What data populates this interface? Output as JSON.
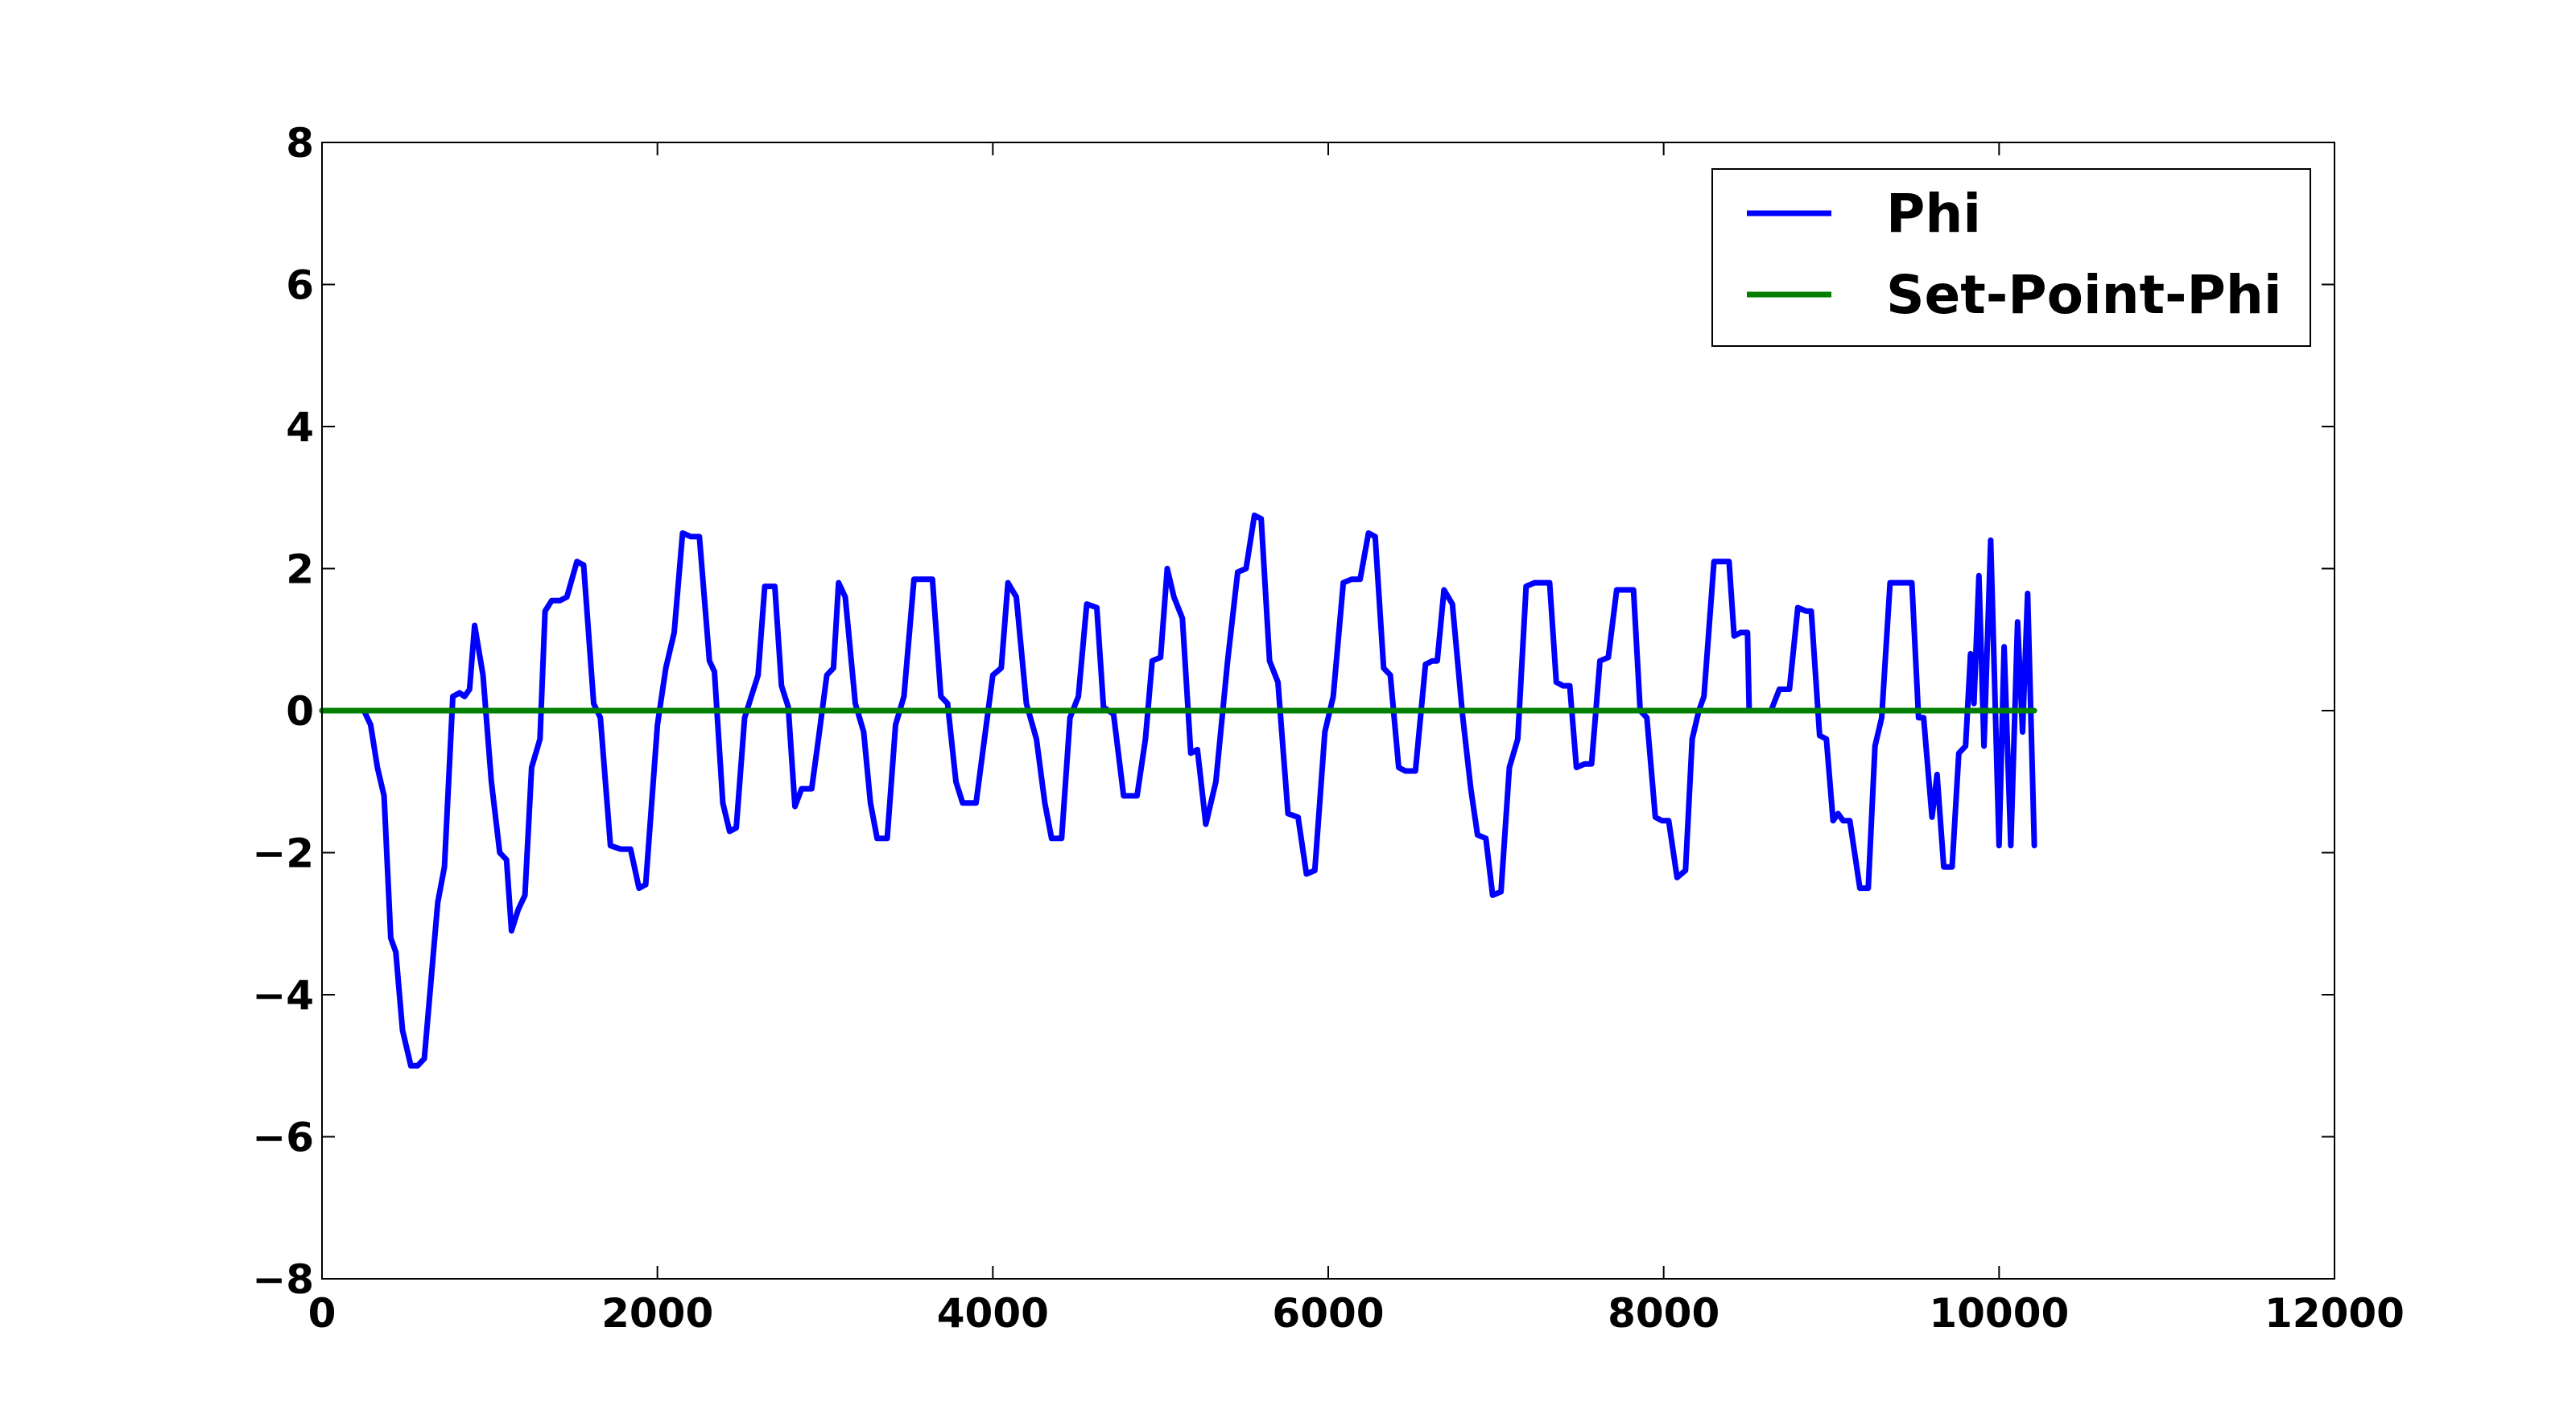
{
  "chart_data": {
    "type": "line",
    "title": "",
    "xlabel": "",
    "ylabel": "",
    "xlim": [
      0,
      12000
    ],
    "ylim": [
      -8,
      8
    ],
    "xticks": [
      0,
      2000,
      4000,
      6000,
      8000,
      10000,
      12000
    ],
    "yticks": [
      -8,
      -6,
      -4,
      -2,
      0,
      2,
      4,
      6,
      8
    ],
    "xtick_labels": [
      "0",
      "2000",
      "4000",
      "6000",
      "8000",
      "10000",
      "12000"
    ],
    "ytick_labels": [
      "−8",
      "−6",
      "−4",
      "−2",
      "0",
      "2",
      "4",
      "6",
      "8"
    ],
    "grid": false,
    "legend_position": "top-right",
    "series": [
      {
        "name": "Phi",
        "color": "#0000ff",
        "points": [
          [
            0,
            0
          ],
          [
            250,
            0
          ],
          [
            290,
            -0.2
          ],
          [
            330,
            -0.8
          ],
          [
            370,
            -1.2
          ],
          [
            410,
            -3.2
          ],
          [
            440,
            -3.4
          ],
          [
            480,
            -4.5
          ],
          [
            530,
            -5.0
          ],
          [
            570,
            -5.0
          ],
          [
            610,
            -4.9
          ],
          [
            690,
            -2.7
          ],
          [
            730,
            -2.2
          ],
          [
            780,
            0.2
          ],
          [
            820,
            0.25
          ],
          [
            850,
            0.2
          ],
          [
            880,
            0.3
          ],
          [
            910,
            1.2
          ],
          [
            960,
            0.5
          ],
          [
            1010,
            -1.0
          ],
          [
            1060,
            -2.0
          ],
          [
            1100,
            -2.1
          ],
          [
            1130,
            -3.1
          ],
          [
            1170,
            -2.8
          ],
          [
            1210,
            -2.6
          ],
          [
            1250,
            -0.8
          ],
          [
            1300,
            -0.4
          ],
          [
            1330,
            1.4
          ],
          [
            1370,
            1.55
          ],
          [
            1420,
            1.55
          ],
          [
            1460,
            1.6
          ],
          [
            1520,
            2.1
          ],
          [
            1560,
            2.05
          ],
          [
            1620,
            0.1
          ],
          [
            1660,
            -0.1
          ],
          [
            1720,
            -1.9
          ],
          [
            1780,
            -1.95
          ],
          [
            1840,
            -1.95
          ],
          [
            1890,
            -2.5
          ],
          [
            1930,
            -2.45
          ],
          [
            2000,
            -0.2
          ],
          [
            2050,
            0.6
          ],
          [
            2100,
            1.1
          ],
          [
            2150,
            2.5
          ],
          [
            2200,
            2.45
          ],
          [
            2250,
            2.45
          ],
          [
            2310,
            0.7
          ],
          [
            2340,
            0.55
          ],
          [
            2390,
            -1.3
          ],
          [
            2430,
            -1.7
          ],
          [
            2470,
            -1.65
          ],
          [
            2520,
            -0.1
          ],
          [
            2560,
            0.2
          ],
          [
            2600,
            0.5
          ],
          [
            2640,
            1.75
          ],
          [
            2700,
            1.75
          ],
          [
            2740,
            0.35
          ],
          [
            2780,
            0.05
          ],
          [
            2820,
            -1.35
          ],
          [
            2860,
            -1.1
          ],
          [
            2920,
            -1.1
          ],
          [
            2960,
            -0.4
          ],
          [
            3010,
            0.5
          ],
          [
            3050,
            0.6
          ],
          [
            3080,
            1.8
          ],
          [
            3120,
            1.6
          ],
          [
            3180,
            0.1
          ],
          [
            3230,
            -0.3
          ],
          [
            3270,
            -1.3
          ],
          [
            3310,
            -1.8
          ],
          [
            3370,
            -1.8
          ],
          [
            3420,
            -0.2
          ],
          [
            3470,
            0.2
          ],
          [
            3530,
            1.85
          ],
          [
            3590,
            1.85
          ],
          [
            3640,
            1.85
          ],
          [
            3690,
            0.2
          ],
          [
            3730,
            0.1
          ],
          [
            3780,
            -1.0
          ],
          [
            3820,
            -1.3
          ],
          [
            3900,
            -1.3
          ],
          [
            3950,
            -0.4
          ],
          [
            4000,
            0.5
          ],
          [
            4050,
            0.6
          ],
          [
            4090,
            1.8
          ],
          [
            4140,
            1.6
          ],
          [
            4200,
            0.1
          ],
          [
            4260,
            -0.4
          ],
          [
            4310,
            -1.3
          ],
          [
            4350,
            -1.8
          ],
          [
            4410,
            -1.8
          ],
          [
            4460,
            -0.1
          ],
          [
            4510,
            0.2
          ],
          [
            4560,
            1.5
          ],
          [
            4620,
            1.45
          ],
          [
            4660,
            0.05
          ],
          [
            4720,
            -0.05
          ],
          [
            4780,
            -1.2
          ],
          [
            4860,
            -1.2
          ],
          [
            4910,
            -0.4
          ],
          [
            4950,
            0.7
          ],
          [
            5000,
            0.75
          ],
          [
            5040,
            2.0
          ],
          [
            5080,
            1.6
          ],
          [
            5130,
            1.3
          ],
          [
            5180,
            -0.6
          ],
          [
            5220,
            -0.55
          ],
          [
            5270,
            -1.6
          ],
          [
            5330,
            -1.0
          ],
          [
            5400,
            0.7
          ],
          [
            5460,
            1.95
          ],
          [
            5510,
            2.0
          ],
          [
            5560,
            2.75
          ],
          [
            5600,
            2.7
          ],
          [
            5650,
            0.7
          ],
          [
            5700,
            0.4
          ],
          [
            5760,
            -1.45
          ],
          [
            5820,
            -1.5
          ],
          [
            5870,
            -2.3
          ],
          [
            5920,
            -2.25
          ],
          [
            5980,
            -0.3
          ],
          [
            6030,
            0.2
          ],
          [
            6090,
            1.8
          ],
          [
            6140,
            1.85
          ],
          [
            6190,
            1.85
          ],
          [
            6240,
            2.5
          ],
          [
            6280,
            2.45
          ],
          [
            6330,
            0.6
          ],
          [
            6370,
            0.5
          ],
          [
            6420,
            -0.8
          ],
          [
            6460,
            -0.85
          ],
          [
            6520,
            -0.85
          ],
          [
            6580,
            0.65
          ],
          [
            6620,
            0.7
          ],
          [
            6650,
            0.7
          ],
          [
            6690,
            1.7
          ],
          [
            6740,
            1.5
          ],
          [
            6800,
            -0.05
          ],
          [
            6850,
            -1.1
          ],
          [
            6890,
            -1.75
          ],
          [
            6940,
            -1.8
          ],
          [
            6980,
            -2.6
          ],
          [
            7030,
            -2.55
          ],
          [
            7080,
            -0.8
          ],
          [
            7130,
            -0.4
          ],
          [
            7180,
            1.75
          ],
          [
            7230,
            1.8
          ],
          [
            7280,
            1.8
          ],
          [
            7320,
            1.8
          ],
          [
            7360,
            0.4
          ],
          [
            7400,
            0.35
          ],
          [
            7440,
            0.35
          ],
          [
            7480,
            -0.8
          ],
          [
            7530,
            -0.75
          ],
          [
            7570,
            -0.75
          ],
          [
            7620,
            0.7
          ],
          [
            7670,
            0.75
          ],
          [
            7720,
            1.7
          ],
          [
            7770,
            1.7
          ],
          [
            7820,
            1.7
          ],
          [
            7860,
            0.0
          ],
          [
            7900,
            -0.1
          ],
          [
            7950,
            -1.5
          ],
          [
            7990,
            -1.55
          ],
          [
            8030,
            -1.55
          ],
          [
            8080,
            -2.35
          ],
          [
            8130,
            -2.25
          ],
          [
            8170,
            -0.4
          ],
          [
            8210,
            0.0
          ],
          [
            8240,
            0.2
          ],
          [
            8300,
            2.1
          ],
          [
            8350,
            2.1
          ],
          [
            8390,
            2.1
          ],
          [
            8420,
            1.05
          ],
          [
            8460,
            1.1
          ],
          [
            8500,
            1.1
          ],
          [
            8510,
            0.0
          ],
          [
            8540,
            0.0
          ],
          [
            8640,
            0.0
          ],
          [
            8690,
            0.3
          ],
          [
            8750,
            0.3
          ],
          [
            8800,
            1.45
          ],
          [
            8850,
            1.4
          ],
          [
            8880,
            1.4
          ],
          [
            8930,
            -0.35
          ],
          [
            8970,
            -0.4
          ],
          [
            9010,
            -1.55
          ],
          [
            9040,
            -1.45
          ],
          [
            9070,
            -1.55
          ],
          [
            9110,
            -1.55
          ],
          [
            9170,
            -2.5
          ],
          [
            9220,
            -2.5
          ],
          [
            9260,
            -0.5
          ],
          [
            9300,
            -0.1
          ],
          [
            9350,
            1.8
          ],
          [
            9400,
            1.8
          ],
          [
            9440,
            1.8
          ],
          [
            9480,
            1.8
          ],
          [
            9520,
            -0.1
          ],
          [
            9550,
            -0.1
          ],
          [
            9600,
            -1.5
          ],
          [
            9630,
            -0.9
          ],
          [
            9670,
            -2.2
          ],
          [
            9720,
            -2.2
          ],
          [
            9760,
            -0.6
          ],
          [
            9800,
            -0.5
          ],
          [
            9830,
            0.8
          ],
          [
            9850,
            0.1
          ],
          [
            9880,
            1.9
          ],
          [
            9910,
            -0.5
          ],
          [
            9950,
            2.4
          ],
          [
            10000,
            -1.9
          ],
          [
            10030,
            0.9
          ],
          [
            10070,
            -1.9
          ],
          [
            10110,
            1.25
          ],
          [
            10140,
            -0.3
          ],
          [
            10170,
            1.65
          ],
          [
            10210,
            -1.9
          ]
        ]
      },
      {
        "name": "Set-Point-Phi",
        "color": "#007f00",
        "points": [
          [
            0,
            0
          ],
          [
            10210,
            0
          ]
        ]
      }
    ]
  }
}
